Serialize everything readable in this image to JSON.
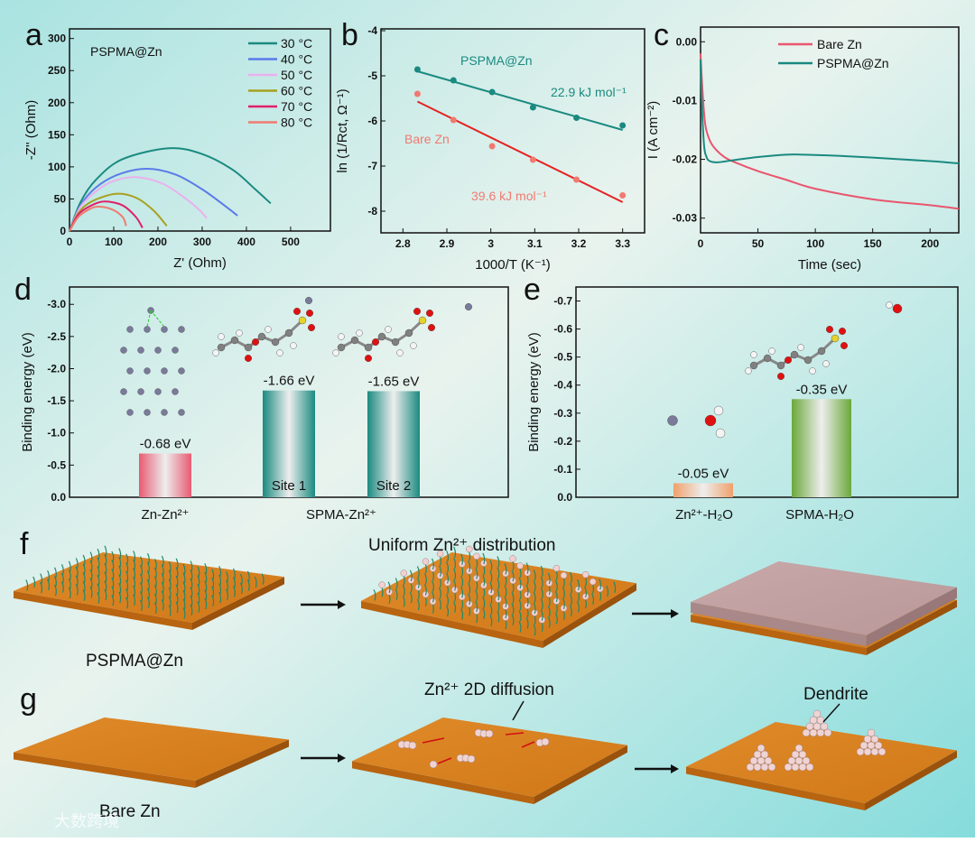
{
  "panel_labels": {
    "a": "a",
    "b": "b",
    "c": "c",
    "d": "d",
    "e": "e",
    "f": "f",
    "g": "g"
  },
  "chart_data": [
    {
      "id": "a",
      "type": "line",
      "xlabel": "Z' (Ohm)",
      "ylabel": "-Z'' (Ohm)",
      "xlim": [
        0,
        590
      ],
      "ylim": [
        0,
        315
      ],
      "xticks": [
        0,
        100,
        200,
        300,
        400,
        500
      ],
      "yticks": [
        0,
        50,
        100,
        150,
        200,
        250,
        300
      ],
      "annotation": "PSPMA@Zn",
      "legend": "top-right",
      "series": [
        {
          "name": "30 °C",
          "color": "#1a8a80",
          "points": [
            [
              0,
              0
            ],
            [
              25,
              45
            ],
            [
              60,
              80
            ],
            [
              120,
              112
            ],
            [
              225,
              129
            ],
            [
              300,
              120
            ],
            [
              370,
              95
            ],
            [
              420,
              65
            ],
            [
              455,
              43
            ]
          ]
        },
        {
          "name": "40 °C",
          "color": "#5b7be8",
          "points": [
            [
              0,
              0
            ],
            [
              25,
              40
            ],
            [
              60,
              68
            ],
            [
              110,
              88
            ],
            [
              175,
              97
            ],
            [
              240,
              88
            ],
            [
              300,
              65
            ],
            [
              350,
              40
            ],
            [
              380,
              24
            ]
          ]
        },
        {
          "name": "50 °C",
          "color": "#eab0ee",
          "points": [
            [
              0,
              0
            ],
            [
              25,
              38
            ],
            [
              60,
              62
            ],
            [
              100,
              78
            ],
            [
              150,
              84
            ],
            [
              210,
              74
            ],
            [
              260,
              52
            ],
            [
              295,
              32
            ],
            [
              310,
              20
            ]
          ]
        },
        {
          "name": "60 °C",
          "color": "#a8a020",
          "points": [
            [
              0,
              0
            ],
            [
              20,
              28
            ],
            [
              50,
              46
            ],
            [
              105,
              58
            ],
            [
              150,
              52
            ],
            [
              190,
              32
            ],
            [
              220,
              8
            ]
          ]
        },
        {
          "name": "70 °C",
          "color": "#e0206a",
          "points": [
            [
              0,
              0
            ],
            [
              20,
              26
            ],
            [
              50,
              40
            ],
            [
              80,
              46
            ],
            [
              120,
              40
            ],
            [
              150,
              22
            ],
            [
              165,
              5
            ]
          ]
        },
        {
          "name": "80 °C",
          "color": "#f07a70",
          "points": [
            [
              0,
              0
            ],
            [
              20,
              22
            ],
            [
              45,
              34
            ],
            [
              65,
              38
            ],
            [
              95,
              34
            ],
            [
              120,
              22
            ],
            [
              128,
              8
            ]
          ]
        }
      ]
    },
    {
      "id": "b",
      "type": "scatter",
      "xlabel": "1000/T (K⁻¹)",
      "ylabel": "ln (1/Rct, Ω⁻¹)",
      "xlim": [
        2.75,
        3.35
      ],
      "ylim": [
        -8.48,
        -3.96
      ],
      "xticks": [
        2.8,
        2.9,
        3.0,
        3.1,
        3.2,
        3.3
      ],
      "yticks": [
        -4,
        -5,
        -6,
        -7,
        -8
      ],
      "series": [
        {
          "name": "PSPMA@Zn",
          "color": "#1a8a80",
          "x": [
            2.833,
            2.915,
            3.003,
            3.096,
            3.195,
            3.3
          ],
          "y": [
            -4.86,
            -5.1,
            -5.36,
            -5.7,
            -5.93,
            -6.1
          ],
          "fit": [
            [
              2.833,
              -4.9
            ],
            [
              3.3,
              -6.2
            ]
          ],
          "energy_label": "22.9 kJ mol⁻¹"
        },
        {
          "name": "Bare Zn",
          "color": "#f07a70",
          "line_color": "#e52222",
          "x": [
            2.833,
            2.915,
            3.003,
            3.096,
            3.195,
            3.3
          ],
          "y": [
            -5.4,
            -5.98,
            -6.56,
            -6.86,
            -7.3,
            -7.65
          ],
          "fit": [
            [
              2.833,
              -5.57
            ],
            [
              3.3,
              -7.8
            ]
          ],
          "energy_label": "39.6 kJ mol⁻¹"
        }
      ]
    },
    {
      "id": "c",
      "type": "line",
      "xlabel": "Time (sec)",
      "ylabel": "I (A cm⁻²)",
      "xlim": [
        0,
        225
      ],
      "ylim": [
        -0.0325,
        0.0025
      ],
      "xticks": [
        0,
        50,
        100,
        150,
        200
      ],
      "yticks": [
        "0.00",
        "-0.01",
        "-0.02",
        "-0.03"
      ],
      "legend": "top-right",
      "series": [
        {
          "name": "Bare Zn",
          "color": "#e8566e",
          "x": [
            0,
            1,
            3,
            5,
            10,
            20,
            30,
            50,
            75,
            100,
            150,
            200,
            225
          ],
          "y": [
            -0.002,
            -0.006,
            -0.012,
            -0.015,
            -0.0175,
            -0.0195,
            -0.0205,
            -0.022,
            -0.0235,
            -0.025,
            -0.0268,
            -0.0278,
            -0.0284
          ]
        },
        {
          "name": "PSPMA@Zn",
          "color": "#1a8a80",
          "x": [
            0,
            1,
            3,
            5,
            8,
            15,
            30,
            50,
            75,
            90,
            120,
            150,
            200,
            225
          ],
          "y": [
            -0.003,
            -0.01,
            -0.0175,
            -0.0195,
            -0.0203,
            -0.0205,
            -0.0201,
            -0.0196,
            -0.0192,
            -0.0192,
            -0.0194,
            -0.0197,
            -0.0203,
            -0.0207
          ]
        }
      ]
    },
    {
      "id": "d",
      "type": "bar",
      "ylabel": "Binding energy (eV)",
      "ylim": [
        0,
        -3.27
      ],
      "yticks": [
        "0.0",
        "-0.5",
        "-1.0",
        "-1.5",
        "-2.0",
        "-2.5",
        "-3.0"
      ],
      "categories": [
        "Zn-Zn²⁺",
        "SPMA-Zn²⁺"
      ],
      "bars": [
        {
          "value": -0.68,
          "label": "-0.68 eV",
          "inner": "",
          "color": "#e85a72"
        },
        {
          "value": -1.66,
          "label": "-1.66 eV",
          "inner": "Site 1",
          "color": "#1a8a80"
        },
        {
          "value": -1.65,
          "label": "-1.65 eV",
          "inner": "Site 2",
          "color": "#1a8a80"
        }
      ]
    },
    {
      "id": "e",
      "type": "bar",
      "ylabel": "Binding energy (eV)",
      "ylim": [
        0,
        -0.75
      ],
      "yticks": [
        "0.0",
        "-0.1",
        "-0.2",
        "-0.3",
        "-0.4",
        "-0.5",
        "-0.6",
        "-0.7"
      ],
      "categories": [
        "Zn²⁺-H₂O",
        "SPMA-H₂O"
      ],
      "bars": [
        {
          "value": -0.05,
          "label": "-0.05 eV",
          "color": "#f0a06a"
        },
        {
          "value": -0.35,
          "label": "-0.35 eV",
          "color": "#6aa83a"
        }
      ]
    }
  ],
  "schematic": {
    "f_top": "Uniform Zn²⁺ distribution",
    "f_bottom": "PSPMA@Zn",
    "g_diffusion": "Zn²⁺ 2D diffusion",
    "g_dendrite": "Dendrite",
    "g_bottom": "Bare Zn"
  },
  "watermark": "大数跨境"
}
